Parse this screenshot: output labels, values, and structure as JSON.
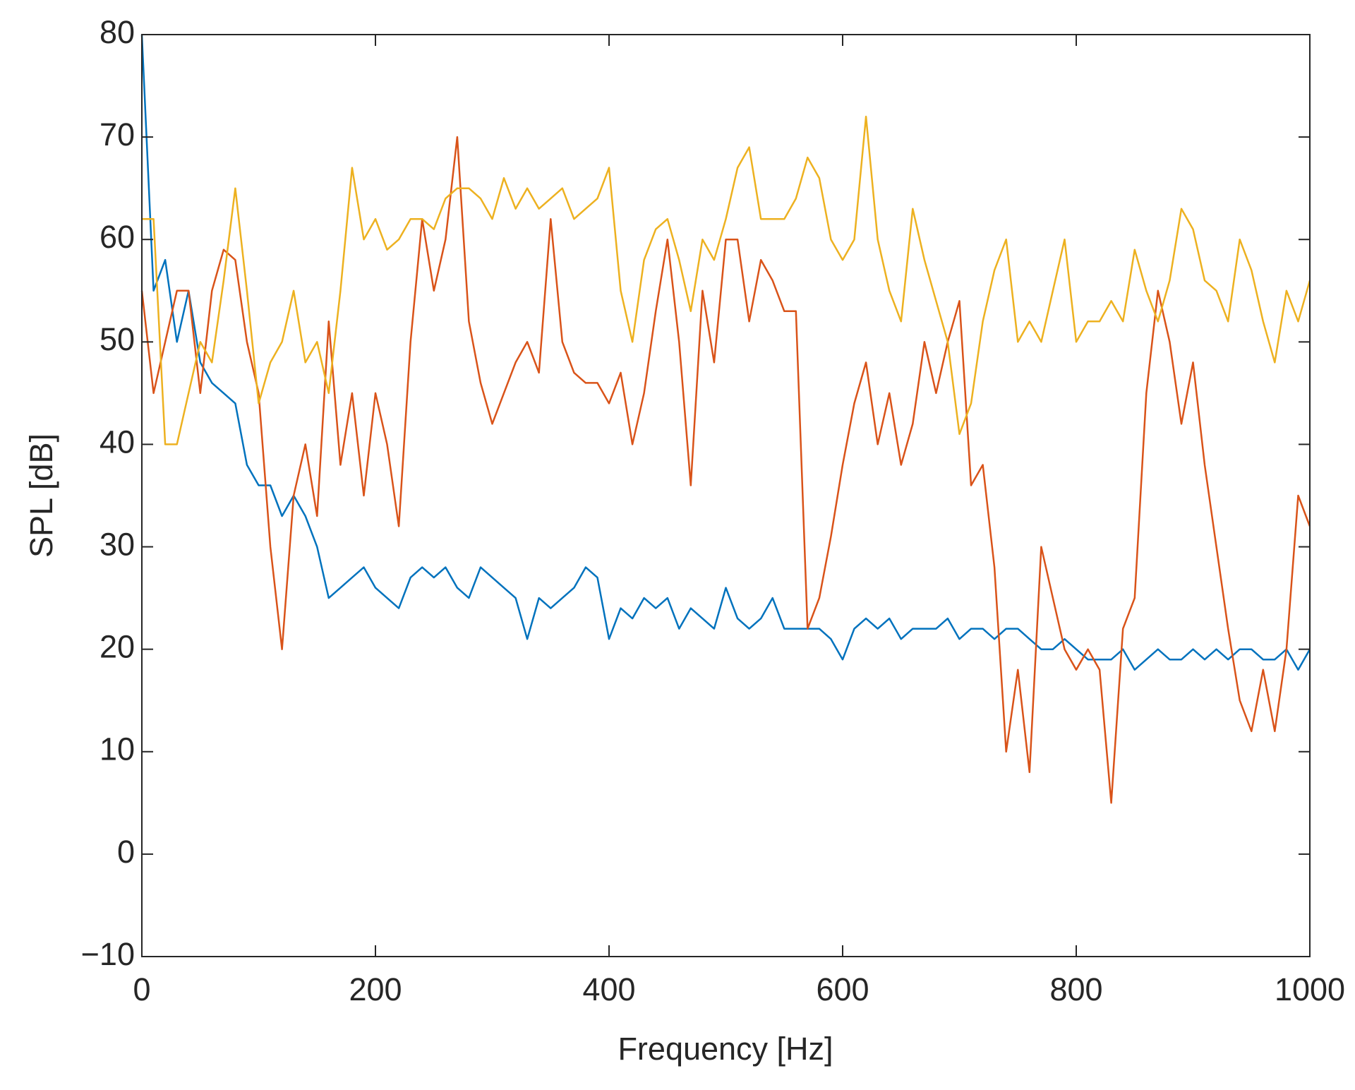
{
  "chart_data": {
    "type": "line",
    "xlabel": "Frequency [Hz]",
    "ylabel": "SPL [dB]",
    "x": [
      0,
      10,
      20,
      30,
      40,
      50,
      60,
      70,
      80,
      90,
      100,
      110,
      120,
      130,
      140,
      150,
      160,
      170,
      180,
      190,
      200,
      210,
      220,
      230,
      240,
      250,
      260,
      270,
      280,
      290,
      300,
      310,
      320,
      330,
      340,
      350,
      360,
      370,
      380,
      390,
      400,
      410,
      420,
      430,
      440,
      450,
      460,
      470,
      480,
      490,
      500,
      510,
      520,
      530,
      540,
      550,
      560,
      570,
      580,
      590,
      600,
      610,
      620,
      630,
      640,
      650,
      660,
      670,
      680,
      690,
      700,
      710,
      720,
      730,
      740,
      750,
      760,
      770,
      780,
      790,
      800,
      810,
      820,
      830,
      840,
      850,
      860,
      870,
      880,
      890,
      900,
      910,
      920,
      930,
      940,
      950,
      960,
      970,
      980,
      990,
      1000
    ],
    "series": [
      {
        "color": "#0072bd",
        "values": [
          80,
          55,
          58,
          50,
          55,
          48,
          46,
          45,
          44,
          38,
          36,
          36,
          33,
          35,
          33,
          30,
          25,
          26,
          27,
          28,
          26,
          25,
          24,
          27,
          28,
          27,
          28,
          26,
          25,
          28,
          27,
          26,
          25,
          21,
          25,
          24,
          25,
          26,
          28,
          27,
          21,
          24,
          23,
          25,
          24,
          25,
          22,
          24,
          23,
          22,
          26,
          23,
          22,
          23,
          25,
          22,
          22,
          22,
          22,
          21,
          19,
          22,
          23,
          22,
          23,
          21,
          22,
          22,
          22,
          23,
          21,
          22,
          22,
          21,
          22,
          22,
          21,
          20,
          20,
          21,
          20,
          19,
          19,
          19,
          20,
          18,
          19,
          20,
          19,
          19,
          20,
          19,
          20,
          19,
          20,
          20,
          19,
          19,
          20,
          18,
          20
        ]
      },
      {
        "color": "#d95319",
        "values": [
          55,
          45,
          50,
          55,
          55,
          45,
          55,
          59,
          58,
          50,
          45,
          30,
          20,
          35,
          40,
          33,
          52,
          38,
          45,
          35,
          45,
          40,
          32,
          50,
          62,
          55,
          60,
          70,
          52,
          46,
          42,
          45,
          48,
          50,
          47,
          62,
          50,
          47,
          46,
          46,
          44,
          47,
          40,
          45,
          53,
          60,
          50,
          36,
          55,
          48,
          60,
          60,
          52,
          58,
          56,
          53,
          53,
          22,
          25,
          31,
          38,
          44,
          48,
          40,
          45,
          38,
          42,
          50,
          45,
          50,
          54,
          36,
          38,
          28,
          10,
          18,
          8,
          30,
          25,
          20,
          18,
          20,
          18,
          5,
          22,
          25,
          45,
          55,
          50,
          42,
          48,
          38,
          30,
          22,
          15,
          12,
          18,
          12,
          20,
          35,
          32
        ]
      },
      {
        "color": "#edb120",
        "values": [
          62,
          62,
          40,
          40,
          45,
          50,
          48,
          56,
          65,
          55,
          44,
          48,
          50,
          55,
          48,
          50,
          45,
          55,
          67,
          60,
          62,
          59,
          60,
          62,
          62,
          61,
          64,
          65,
          65,
          64,
          62,
          66,
          63,
          65,
          63,
          64,
          65,
          62,
          63,
          64,
          67,
          55,
          50,
          58,
          61,
          62,
          58,
          53,
          60,
          58,
          62,
          67,
          69,
          62,
          62,
          62,
          64,
          68,
          66,
          60,
          58,
          60,
          72,
          60,
          55,
          52,
          63,
          58,
          54,
          50,
          41,
          44,
          52,
          57,
          60,
          50,
          52,
          50,
          55,
          60,
          50,
          52,
          52,
          54,
          52,
          59,
          55,
          52,
          56,
          63,
          61,
          56,
          55,
          52,
          60,
          57,
          52,
          48,
          55,
          52,
          56
        ]
      }
    ],
    "xlim": [
      0,
      1000
    ],
    "xticks": [
      0,
      200,
      400,
      600,
      800,
      1000
    ],
    "ylim": [
      -10,
      80
    ],
    "yticks": [
      {
        "value": -10,
        "label": "−10"
      },
      0,
      10,
      20,
      30,
      40,
      50,
      60,
      70,
      80
    ],
    "grid": false
  }
}
